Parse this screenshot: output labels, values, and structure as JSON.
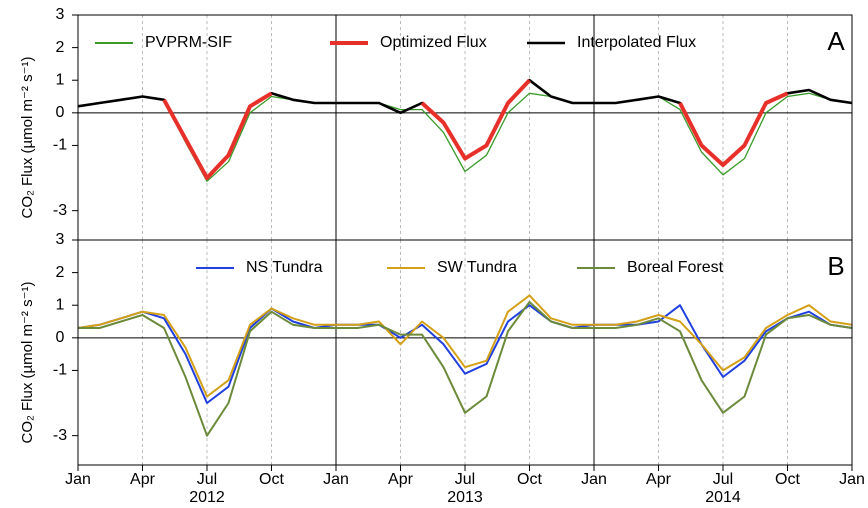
{
  "chart_data": [
    {
      "type": "line",
      "panel_label": "A",
      "y_label": "CO₂ Flux (µmol m⁻² s⁻¹)",
      "x": [
        "2012-01",
        "2012-02",
        "2012-03",
        "2012-04",
        "2012-05",
        "2012-06",
        "2012-07",
        "2012-08",
        "2012-09",
        "2012-10",
        "2012-11",
        "2012-12",
        "2013-01",
        "2013-02",
        "2013-03",
        "2013-04",
        "2013-05",
        "2013-06",
        "2013-07",
        "2013-08",
        "2013-09",
        "2013-10",
        "2013-11",
        "2013-12",
        "2014-01",
        "2014-02",
        "2014-03",
        "2014-04",
        "2014-05",
        "2014-06",
        "2014-07",
        "2014-08",
        "2014-09",
        "2014-10",
        "2014-11",
        "2014-12",
        "2015-01"
      ],
      "ylim": [
        -3.9,
        3
      ],
      "yticks": [
        -3,
        -1,
        0,
        1,
        2,
        3
      ],
      "series": [
        {
          "name": "PVPRM-SIF",
          "color": "#3a9a2a",
          "values": [
            0.2,
            0.3,
            0.4,
            0.5,
            0.4,
            -0.9,
            -2.1,
            -1.5,
            0.0,
            0.5,
            0.4,
            0.3,
            0.3,
            0.3,
            0.3,
            0.1,
            0.1,
            -0.6,
            -1.8,
            -1.3,
            0.0,
            0.6,
            0.5,
            0.3,
            0.3,
            0.3,
            0.4,
            0.5,
            0.1,
            -1.2,
            -1.9,
            -1.4,
            0.0,
            0.5,
            0.6,
            0.4,
            0.3
          ]
        },
        {
          "name": "Interpolated Flux",
          "color": "#000000",
          "values": [
            0.2,
            0.3,
            0.4,
            0.5,
            0.4,
            -0.8,
            -2.0,
            -1.3,
            0.2,
            0.6,
            0.4,
            0.3,
            0.3,
            0.3,
            0.3,
            0.0,
            0.3,
            -0.3,
            -1.4,
            -1.0,
            0.3,
            1.0,
            0.5,
            0.3,
            0.3,
            0.3,
            0.4,
            0.5,
            0.3,
            -1.0,
            -1.6,
            -1.0,
            0.3,
            0.6,
            0.7,
            0.4,
            0.3
          ]
        },
        {
          "name": "Optimized Flux",
          "color": "#e8302a",
          "values": [
            null,
            null,
            null,
            null,
            0.4,
            -0.8,
            -2.0,
            -1.3,
            0.2,
            0.6,
            null,
            null,
            null,
            null,
            null,
            null,
            0.3,
            -0.3,
            -1.4,
            -1.0,
            0.3,
            1.0,
            null,
            null,
            null,
            null,
            null,
            null,
            0.3,
            -1.0,
            -1.6,
            -1.0,
            0.3,
            0.6,
            null,
            null,
            null
          ]
        }
      ]
    },
    {
      "type": "line",
      "panel_label": "B",
      "y_label": "CO₂ Flux (µmol m⁻² s⁻¹)",
      "x": [
        "2012-01",
        "2012-02",
        "2012-03",
        "2012-04",
        "2012-05",
        "2012-06",
        "2012-07",
        "2012-08",
        "2012-09",
        "2012-10",
        "2012-11",
        "2012-12",
        "2013-01",
        "2013-02",
        "2013-03",
        "2013-04",
        "2013-05",
        "2013-06",
        "2013-07",
        "2013-08",
        "2013-09",
        "2013-10",
        "2013-11",
        "2013-12",
        "2014-01",
        "2014-02",
        "2014-03",
        "2014-04",
        "2014-05",
        "2014-06",
        "2014-07",
        "2014-08",
        "2014-09",
        "2014-10",
        "2014-11",
        "2014-12",
        "2015-01"
      ],
      "ylim": [
        -3.9,
        3
      ],
      "yticks": [
        -3,
        -1,
        0,
        1,
        2,
        3
      ],
      "xticks": [
        {
          "value": "2012-01",
          "label": "Jan"
        },
        {
          "value": "2012-04",
          "label": "Apr"
        },
        {
          "value": "2012-07",
          "label": "Jul"
        },
        {
          "value": "2012-10",
          "label": "Oct"
        },
        {
          "value": "2013-01",
          "label": "Jan"
        },
        {
          "value": "2013-04",
          "label": "Apr"
        },
        {
          "value": "2013-07",
          "label": "Jul"
        },
        {
          "value": "2013-10",
          "label": "Oct"
        },
        {
          "value": "2014-01",
          "label": "Jan"
        },
        {
          "value": "2014-04",
          "label": "Apr"
        },
        {
          "value": "2014-07",
          "label": "Jul"
        },
        {
          "value": "2014-10",
          "label": "Oct"
        },
        {
          "value": "2015-01",
          "label": "Jan"
        }
      ],
      "year_labels": [
        {
          "value": "2012-07",
          "label": "2012"
        },
        {
          "value": "2013-07",
          "label": "2013"
        },
        {
          "value": "2014-07",
          "label": "2014"
        }
      ],
      "series": [
        {
          "name": "NS Tundra",
          "color": "#2040e0",
          "values": [
            0.3,
            0.4,
            0.6,
            0.8,
            0.6,
            -0.5,
            -2.0,
            -1.5,
            0.3,
            0.9,
            0.5,
            0.3,
            0.4,
            0.4,
            0.4,
            0.0,
            0.4,
            -0.2,
            -1.1,
            -0.8,
            0.5,
            1.0,
            0.5,
            0.3,
            0.4,
            0.4,
            0.4,
            0.5,
            1.0,
            -0.2,
            -1.2,
            -0.7,
            0.2,
            0.6,
            0.8,
            0.4,
            0.3
          ]
        },
        {
          "name": "SW Tundra",
          "color": "#d4a017",
          "values": [
            0.3,
            0.4,
            0.6,
            0.8,
            0.7,
            -0.3,
            -1.8,
            -1.3,
            0.4,
            0.9,
            0.6,
            0.4,
            0.4,
            0.4,
            0.5,
            -0.2,
            0.5,
            0.0,
            -0.9,
            -0.7,
            0.8,
            1.3,
            0.6,
            0.4,
            0.4,
            0.4,
            0.5,
            0.7,
            0.5,
            -0.2,
            -1.0,
            -0.6,
            0.3,
            0.7,
            1.0,
            0.5,
            0.4
          ]
        },
        {
          "name": "Boreal Forest",
          "color": "#6b8a3a",
          "values": [
            0.3,
            0.3,
            0.5,
            0.7,
            0.3,
            -1.2,
            -3.0,
            -2.0,
            0.2,
            0.8,
            0.4,
            0.3,
            0.3,
            0.3,
            0.4,
            0.1,
            0.1,
            -0.9,
            -2.3,
            -1.8,
            0.2,
            1.1,
            0.5,
            0.3,
            0.3,
            0.3,
            0.4,
            0.6,
            0.2,
            -1.3,
            -2.3,
            -1.8,
            0.1,
            0.6,
            0.7,
            0.4,
            0.3
          ]
        }
      ]
    }
  ]
}
